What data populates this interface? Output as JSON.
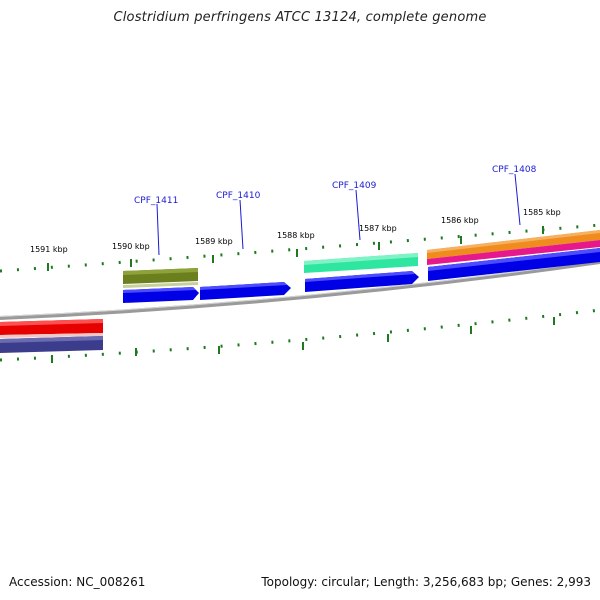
{
  "title": "Clostridium perfringens ATCC 13124, complete genome",
  "footer": {
    "accession": "Accession: NC_008261",
    "summary": "Topology: circular; Length: 3,256,683 bp; Genes: 2,993"
  },
  "colors": {
    "backbone": "#8c8c8c",
    "tick": "#1f7a1f",
    "gene_label": "#1a1ad6",
    "cds_forward": "#0000e6",
    "olive": "#6b7f1f",
    "teal": "#2ee6a0",
    "orange": "#f08c1e",
    "magenta": "#e6198c",
    "red": "#e60000",
    "indigo": "#3c3c8c"
  },
  "scale_labels": [
    "1591 kbp",
    "1590 kbp",
    "1589 kbp",
    "1588 kbp",
    "1587 kbp",
    "1586 kbp",
    "1585 kbp"
  ],
  "gene_labels": [
    "CPF_1411",
    "CPF_1410",
    "CPF_1409",
    "CPF_1408"
  ]
}
